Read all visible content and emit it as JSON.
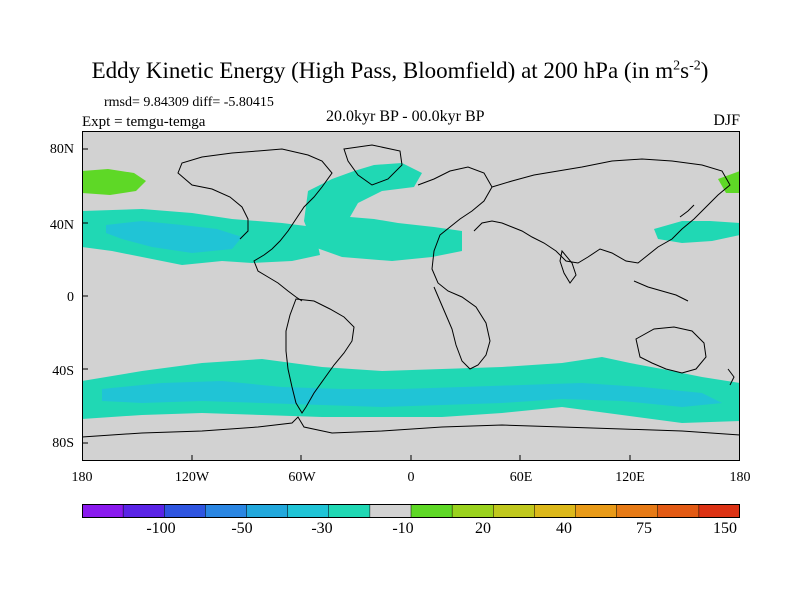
{
  "title": {
    "main": "Eddy Kinetic Energy (High Pass, Bloomfield) at 200 hPa (in m",
    "sup1": "2",
    "mid": "s",
    "sup2": "-2",
    "close": ")"
  },
  "stats": "rmsd= 9.84309 diff= -5.80415",
  "expt": "Expt = temgu-temga",
  "period": "20.0kyr BP - 00.0kyr BP",
  "season": "DJF",
  "lat_labels": [
    "80N",
    "40N",
    "0",
    "40S",
    "80S"
  ],
  "lon_labels": [
    "180",
    "120W",
    "60W",
    "0",
    "60E",
    "120E",
    "180"
  ],
  "colorbar": {
    "colors": [
      "#8a1aee",
      "#5a24e6",
      "#2f55e0",
      "#2a86e2",
      "#22a8dc",
      "#20c4d6",
      "#20d8b4",
      "#d2d2d2",
      "#5ed826",
      "#9ad21e",
      "#c0c81e",
      "#dcb81a",
      "#e89a18",
      "#e67a16",
      "#e25a14",
      "#dc3214"
    ],
    "labels": [
      "-100",
      "-50",
      "-30",
      "-10",
      "20",
      "40",
      "75",
      "150"
    ]
  },
  "map_colors": {
    "background": "#d2d2d2",
    "negative_band": "#20d8b4",
    "strong_negative": "#20c4d6",
    "positive": "#5ed826",
    "coast": "#000000"
  }
}
